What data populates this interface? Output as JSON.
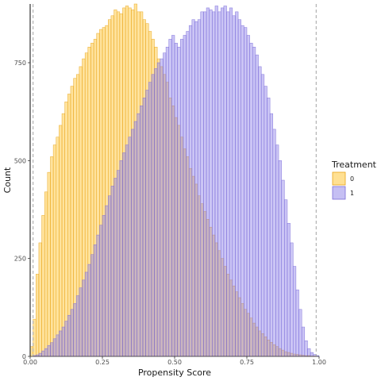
{
  "chart_data": {
    "type": "bar",
    "subtype": "overlaid-histogram",
    "title": "",
    "xlabel": "Propensity Score",
    "ylabel": "Count",
    "xlim": [
      0.0,
      1.0
    ],
    "ylim": [
      0,
      900
    ],
    "x_ticks": [
      "0.00",
      "0.25",
      "0.50",
      "0.75",
      "1.00"
    ],
    "y_ticks": [
      "0",
      "250",
      "500",
      "750"
    ],
    "grid": false,
    "vlines": [
      0.01,
      0.99
    ],
    "legend": {
      "title": "Treatment",
      "position": "right",
      "entries": [
        "0",
        "1"
      ]
    },
    "bins": 100,
    "series": [
      {
        "name": "0",
        "fill": "#FFC125",
        "stroke": "#E8A317",
        "opacity": 0.45,
        "x": [
          0.0,
          0.01,
          0.02,
          0.03,
          0.04,
          0.05,
          0.06,
          0.07,
          0.08,
          0.09,
          0.1,
          0.11,
          0.12,
          0.13,
          0.14,
          0.15,
          0.16,
          0.17,
          0.18,
          0.19,
          0.2,
          0.21,
          0.22,
          0.23,
          0.24,
          0.25,
          0.26,
          0.27,
          0.28,
          0.29,
          0.3,
          0.31,
          0.32,
          0.33,
          0.34,
          0.35,
          0.36,
          0.37,
          0.38,
          0.39,
          0.4,
          0.41,
          0.42,
          0.43,
          0.44,
          0.45,
          0.46,
          0.47,
          0.48,
          0.49,
          0.5,
          0.51,
          0.52,
          0.53,
          0.54,
          0.55,
          0.56,
          0.57,
          0.58,
          0.59,
          0.6,
          0.61,
          0.62,
          0.63,
          0.64,
          0.65,
          0.66,
          0.67,
          0.68,
          0.69,
          0.7,
          0.71,
          0.72,
          0.73,
          0.74,
          0.75,
          0.76,
          0.77,
          0.78,
          0.79,
          0.8,
          0.81,
          0.82,
          0.83,
          0.84,
          0.85,
          0.86,
          0.87,
          0.88,
          0.89,
          0.9,
          0.91,
          0.92,
          0.93,
          0.94,
          0.95,
          0.96,
          0.97,
          0.98,
          0.99
        ],
        "values": [
          25,
          95,
          210,
          290,
          360,
          420,
          470,
          510,
          540,
          560,
          590,
          620,
          650,
          670,
          690,
          710,
          720,
          740,
          760,
          775,
          790,
          800,
          810,
          825,
          835,
          840,
          845,
          860,
          870,
          885,
          880,
          875,
          890,
          895,
          890,
          885,
          900,
          880,
          880,
          860,
          850,
          830,
          810,
          790,
          760,
          740,
          720,
          700,
          660,
          640,
          610,
          590,
          560,
          530,
          510,
          480,
          460,
          440,
          410,
          390,
          370,
          350,
          330,
          310,
          290,
          270,
          250,
          230,
          210,
          195,
          180,
          165,
          150,
          135,
          120,
          110,
          98,
          85,
          75,
          65,
          58,
          50,
          42,
          36,
          30,
          25,
          20,
          16,
          12,
          10,
          8,
          6,
          5,
          4,
          3,
          2,
          2,
          1,
          1,
          0
        ]
      },
      {
        "name": "1",
        "fill": "#8C7FE8",
        "stroke": "#7A6CD8",
        "opacity": 0.45,
        "x": [
          0.0,
          0.01,
          0.02,
          0.03,
          0.04,
          0.05,
          0.06,
          0.07,
          0.08,
          0.09,
          0.1,
          0.11,
          0.12,
          0.13,
          0.14,
          0.15,
          0.16,
          0.17,
          0.18,
          0.19,
          0.2,
          0.21,
          0.22,
          0.23,
          0.24,
          0.25,
          0.26,
          0.27,
          0.28,
          0.29,
          0.3,
          0.31,
          0.32,
          0.33,
          0.34,
          0.35,
          0.36,
          0.37,
          0.38,
          0.39,
          0.4,
          0.41,
          0.42,
          0.43,
          0.44,
          0.45,
          0.46,
          0.47,
          0.48,
          0.49,
          0.5,
          0.51,
          0.52,
          0.53,
          0.54,
          0.55,
          0.56,
          0.57,
          0.58,
          0.59,
          0.6,
          0.61,
          0.62,
          0.63,
          0.64,
          0.65,
          0.66,
          0.67,
          0.68,
          0.69,
          0.7,
          0.71,
          0.72,
          0.73,
          0.74,
          0.75,
          0.76,
          0.77,
          0.78,
          0.79,
          0.8,
          0.81,
          0.82,
          0.83,
          0.84,
          0.85,
          0.86,
          0.87,
          0.88,
          0.89,
          0.9,
          0.91,
          0.92,
          0.93,
          0.94,
          0.95,
          0.96,
          0.97,
          0.98,
          0.99
        ],
        "values": [
          0,
          2,
          4,
          8,
          14,
          20,
          28,
          35,
          45,
          55,
          65,
          75,
          90,
          105,
          120,
          135,
          155,
          175,
          195,
          215,
          235,
          260,
          285,
          310,
          335,
          360,
          385,
          410,
          435,
          455,
          475,
          500,
          520,
          540,
          560,
          580,
          600,
          620,
          640,
          660,
          680,
          700,
          720,
          735,
          750,
          760,
          775,
          790,
          810,
          820,
          800,
          790,
          810,
          820,
          830,
          845,
          860,
          855,
          860,
          880,
          880,
          890,
          885,
          880,
          895,
          880,
          890,
          895,
          880,
          890,
          870,
          880,
          860,
          845,
          840,
          820,
          800,
          790,
          770,
          740,
          720,
          690,
          660,
          620,
          580,
          540,
          500,
          450,
          400,
          340,
          290,
          230,
          170,
          120,
          75,
          40,
          20,
          10,
          5,
          2
        ]
      }
    ]
  }
}
